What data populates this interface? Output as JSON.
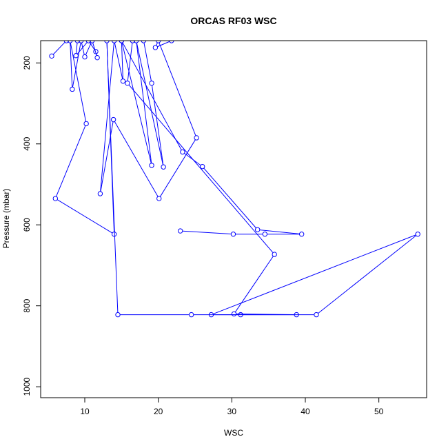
{
  "chart_data": {
    "type": "line",
    "title": "ORCAS RF03 WSC",
    "xlabel": "WSC",
    "ylabel": "Pressure (mbar)",
    "xlim": [
      4,
      56.5
    ],
    "ylim": [
      1027,
      145
    ],
    "y_reversed": true,
    "x_ticks": [
      10,
      20,
      30,
      40,
      50
    ],
    "y_ticks": [
      200,
      400,
      600,
      800,
      1000
    ],
    "grid": false,
    "color": "#0000ff",
    "marker": "open-circle",
    "series": [
      {
        "points": [
          [
            5.5,
            183
          ],
          [
            7.5,
            145
          ],
          [
            9.0,
            145
          ],
          [
            8.8,
            182
          ],
          [
            10.5,
            145
          ],
          [
            11.5,
            172
          ],
          [
            11.7,
            187
          ],
          [
            11.0,
            145
          ],
          [
            10.0,
            185
          ],
          [
            9.5,
            145
          ],
          [
            8.3,
            265
          ],
          [
            8.0,
            145
          ],
          [
            10.2,
            350
          ],
          [
            6.0,
            535
          ],
          [
            14.0,
            623
          ],
          [
            13.0,
            145
          ],
          [
            14.5,
            822
          ],
          [
            24.5,
            822
          ],
          [
            41.5,
            822
          ],
          [
            55.3,
            623
          ],
          [
            27.2,
            822
          ],
          [
            31.2,
            822
          ],
          [
            38.8,
            822
          ],
          [
            30.3,
            820
          ],
          [
            35.8,
            673
          ],
          [
            15.8,
            250
          ],
          [
            16.5,
            145
          ],
          [
            21.8,
            145
          ],
          [
            19.6,
            162
          ],
          [
            20.0,
            145
          ],
          [
            25.2,
            385
          ],
          [
            20.1,
            535
          ],
          [
            13.9,
            340
          ],
          [
            12.1,
            523
          ],
          [
            14.0,
            145
          ],
          [
            15.2,
            245
          ],
          [
            15.0,
            145
          ],
          [
            18.0,
            145
          ],
          [
            19.1,
            250
          ],
          [
            20.7,
            457
          ],
          [
            17.0,
            145
          ],
          [
            19.1,
            453
          ],
          [
            15.0,
            145
          ],
          [
            23.3,
            420
          ],
          [
            26.0,
            456
          ],
          [
            33.5,
            612
          ],
          [
            39.5,
            623
          ],
          [
            34.5,
            623
          ],
          [
            30.2,
            623
          ],
          [
            23.0,
            615
          ]
        ]
      }
    ]
  }
}
